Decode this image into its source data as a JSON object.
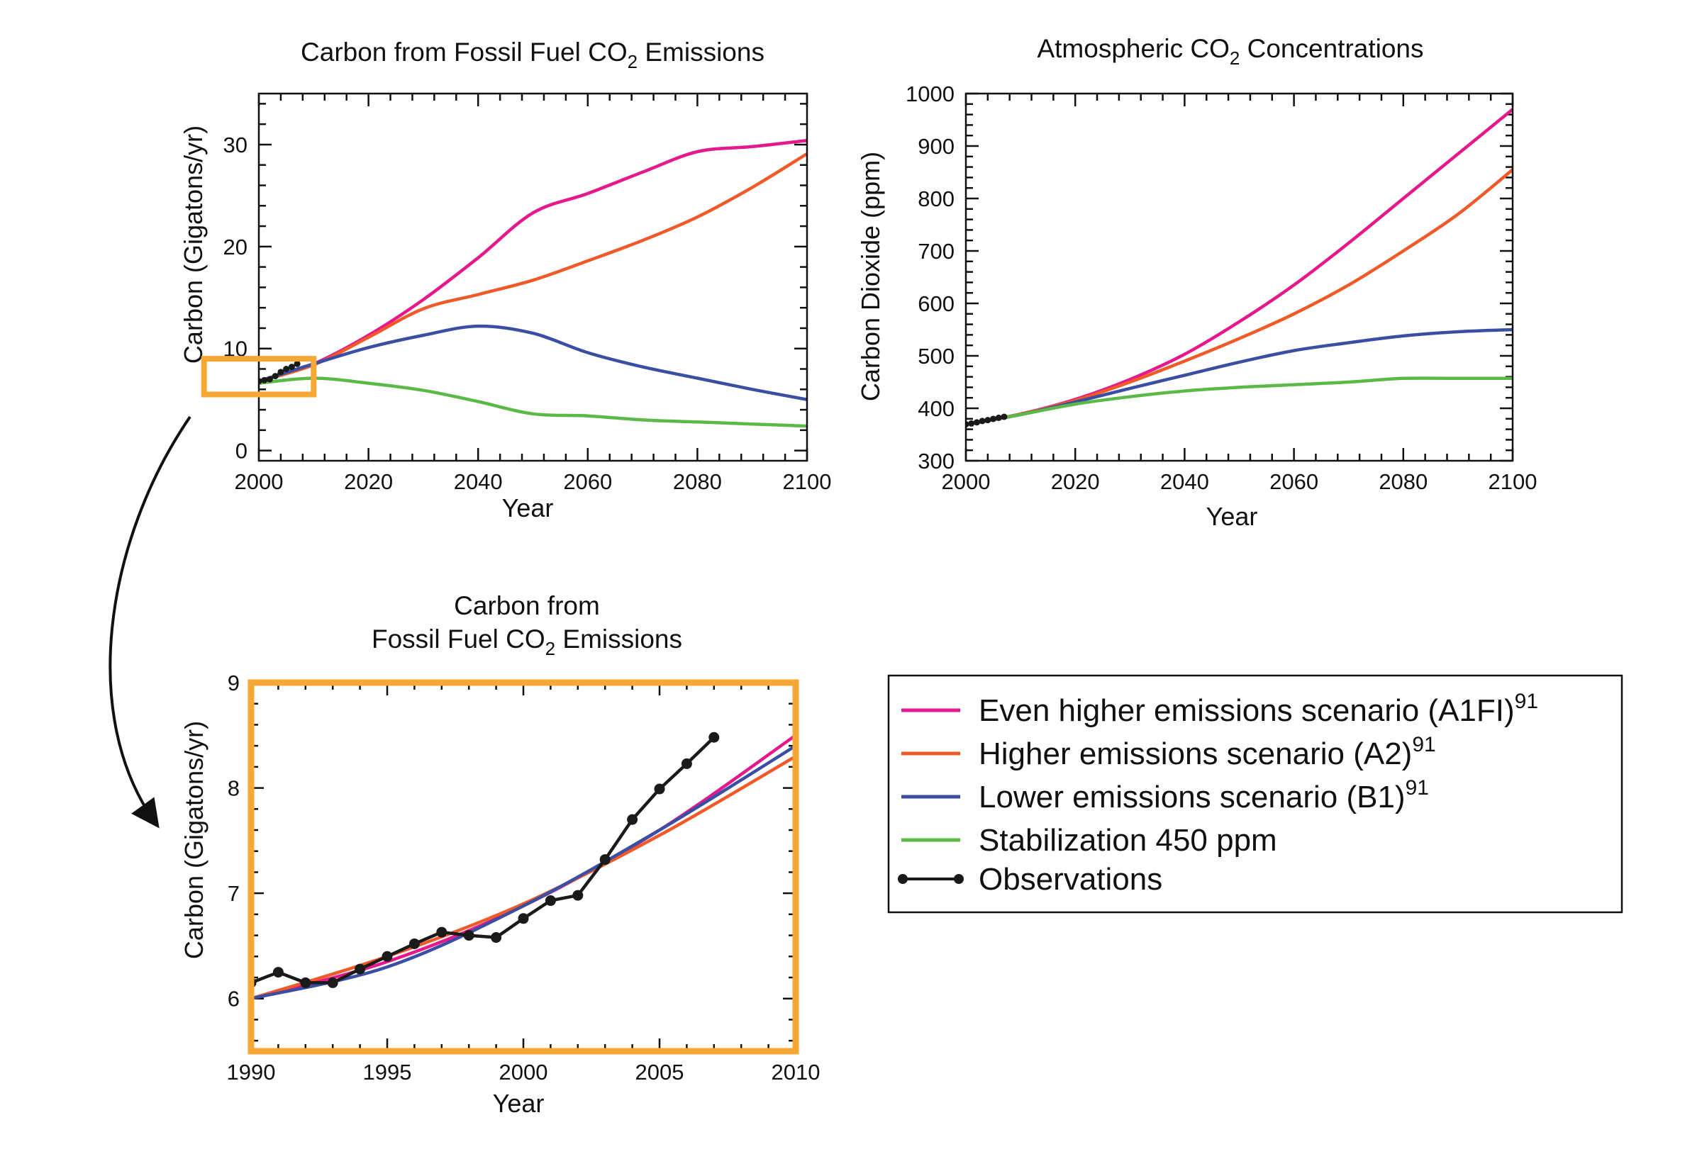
{
  "colors": {
    "a1fi": "#e6198c",
    "a2": "#ef5a28",
    "b1": "#3a4fa3",
    "stab": "#5bb947",
    "obs": "#1a1a1a",
    "highlight": "#f5a833"
  },
  "chart_data": [
    {
      "id": "emissions",
      "type": "line",
      "title": "Carbon from Fossil Fuel CO",
      "title_sub": "2",
      "title_end": " Emissions",
      "xlabel": "Year",
      "ylabel": "Carbon (Gigatons/yr)",
      "xlim": [
        2000,
        2100
      ],
      "ylim": [
        -1,
        35
      ],
      "xticks": [
        2000,
        2020,
        2040,
        2060,
        2080,
        2100
      ],
      "yticks": [
        0,
        10,
        20,
        30
      ],
      "highlight_box": {
        "x": [
          1990,
          2010
        ],
        "y": [
          5.5,
          9
        ]
      },
      "series": [
        {
          "key": "a1fi",
          "x": [
            2000,
            2010,
            2020,
            2030,
            2040,
            2050,
            2060,
            2070,
            2080,
            2090,
            2100
          ],
          "y": [
            6.8,
            8.5,
            11.3,
            14.8,
            18.9,
            23.3,
            25.2,
            27.3,
            29.3,
            29.8,
            30.4
          ]
        },
        {
          "key": "a2",
          "x": [
            2000,
            2010,
            2020,
            2030,
            2040,
            2050,
            2060,
            2070,
            2080,
            2090,
            2100
          ],
          "y": [
            6.8,
            8.4,
            11.1,
            13.9,
            15.3,
            16.7,
            18.6,
            20.6,
            22.9,
            25.8,
            29.1
          ]
        },
        {
          "key": "b1",
          "x": [
            2000,
            2010,
            2020,
            2030,
            2040,
            2050,
            2060,
            2070,
            2080,
            2090,
            2100
          ],
          "y": [
            6.8,
            8.5,
            10.1,
            11.3,
            12.2,
            11.5,
            9.6,
            8.2,
            7.1,
            6.0,
            5.0
          ]
        },
        {
          "key": "stab",
          "x": [
            2000,
            2010,
            2020,
            2030,
            2040,
            2050,
            2060,
            2070,
            2080,
            2090,
            2100
          ],
          "y": [
            6.6,
            7.1,
            6.6,
            5.9,
            4.8,
            3.6,
            3.4,
            3.0,
            2.8,
            2.6,
            2.4
          ]
        },
        {
          "key": "obs",
          "x": [
            2000,
            2001,
            2002,
            2003,
            2004,
            2005,
            2006,
            2007
          ],
          "y": [
            6.8,
            6.9,
            7.0,
            7.3,
            7.7,
            8.0,
            8.2,
            8.5
          ]
        }
      ]
    },
    {
      "id": "concentration",
      "type": "line",
      "title": "Atmospheric CO",
      "title_sub": "2",
      "title_end": " Concentrations",
      "xlabel": "Year",
      "ylabel": "Carbon Dioxide (ppm)",
      "xlim": [
        2000,
        2100
      ],
      "ylim": [
        300,
        1000
      ],
      "xticks": [
        2000,
        2020,
        2040,
        2060,
        2080,
        2100
      ],
      "yticks": [
        300,
        400,
        500,
        600,
        700,
        800,
        900,
        1000
      ],
      "series": [
        {
          "key": "a1fi",
          "x": [
            2000,
            2010,
            2020,
            2030,
            2040,
            2050,
            2060,
            2070,
            2080,
            2090,
            2100
          ],
          "y": [
            369,
            389,
            417,
            455,
            503,
            565,
            635,
            715,
            800,
            885,
            970
          ]
        },
        {
          "key": "a2",
          "x": [
            2000,
            2010,
            2020,
            2030,
            2040,
            2050,
            2060,
            2070,
            2080,
            2090,
            2100
          ],
          "y": [
            369,
            389,
            415,
            450,
            490,
            533,
            580,
            635,
            700,
            770,
            855
          ]
        },
        {
          "key": "b1",
          "x": [
            2000,
            2010,
            2020,
            2030,
            2040,
            2050,
            2060,
            2070,
            2080,
            2090,
            2100
          ],
          "y": [
            369,
            388,
            412,
            438,
            463,
            488,
            510,
            525,
            538,
            546,
            550
          ]
        },
        {
          "key": "stab",
          "x": [
            2000,
            2010,
            2020,
            2030,
            2040,
            2050,
            2060,
            2070,
            2080,
            2090,
            2100
          ],
          "y": [
            369,
            388,
            408,
            422,
            433,
            440,
            445,
            450,
            457,
            457,
            457
          ]
        },
        {
          "key": "obs",
          "x": [
            2000,
            2001,
            2002,
            2003,
            2004,
            2005,
            2006,
            2007
          ],
          "y": [
            369.5,
            371.1,
            373.2,
            375.8,
            377.5,
            379.8,
            381.9,
            383.8
          ]
        }
      ]
    },
    {
      "id": "inset",
      "type": "line",
      "title_line1": "Carbon from",
      "title": "Fossil Fuel CO",
      "title_sub": "2",
      "title_end": " Emissions",
      "xlabel": "Year",
      "ylabel": "Carbon (Gigatons/yr)",
      "xlim": [
        1990,
        2010
      ],
      "ylim": [
        5.5,
        9
      ],
      "xticks": [
        1990,
        1995,
        2000,
        2005,
        2010
      ],
      "yticks": [
        6,
        7,
        8,
        9
      ],
      "series": [
        {
          "key": "a1fi",
          "x": [
            1990,
            1995,
            2000,
            2005,
            2010
          ],
          "y": [
            6.0,
            6.35,
            6.88,
            7.6,
            8.5
          ]
        },
        {
          "key": "a2",
          "x": [
            1990,
            1995,
            2000,
            2005,
            2010
          ],
          "y": [
            6.0,
            6.4,
            6.9,
            7.55,
            8.3
          ]
        },
        {
          "key": "b1",
          "x": [
            1990,
            1995,
            2000,
            2005,
            2010
          ],
          "y": [
            6.0,
            6.3,
            6.88,
            7.6,
            8.4
          ]
        },
        {
          "key": "obs",
          "x": [
            1990,
            1991,
            1992,
            1993,
            1994,
            1995,
            1996,
            1997,
            1998,
            1999,
            2000,
            2001,
            2002,
            2003,
            2004,
            2005,
            2006,
            2007
          ],
          "y": [
            6.15,
            6.25,
            6.15,
            6.15,
            6.28,
            6.4,
            6.52,
            6.63,
            6.6,
            6.58,
            6.76,
            6.93,
            6.98,
            7.32,
            7.7,
            7.99,
            8.23,
            8.48
          ]
        }
      ]
    }
  ],
  "legend": {
    "items": [
      {
        "key": "a1fi",
        "label": "Even higher emissions scenario (A1FI)",
        "sup": "91"
      },
      {
        "key": "a2",
        "label": "Higher emissions scenario (A2)",
        "sup": "91"
      },
      {
        "key": "b1",
        "label": "Lower emissions scenario (B1)",
        "sup": "91"
      },
      {
        "key": "stab",
        "label": "Stabilization 450 ppm",
        "sup": ""
      },
      {
        "key": "obs",
        "label": "Observations",
        "sup": ""
      }
    ]
  }
}
